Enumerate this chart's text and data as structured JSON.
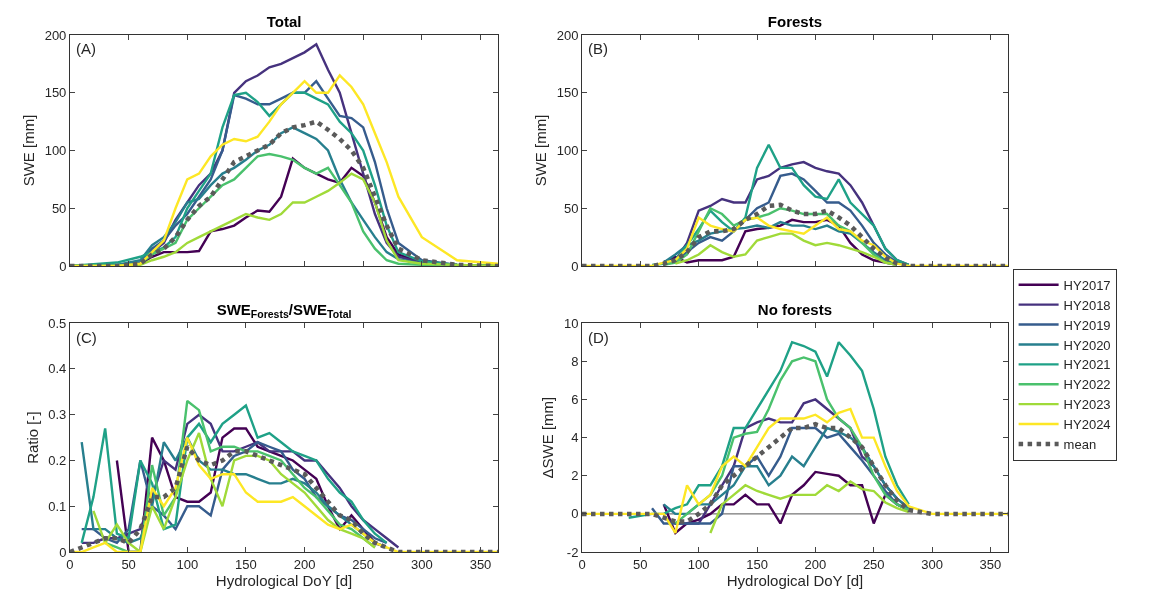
{
  "chart_data": [
    {
      "type": "line",
      "title": "Total",
      "ylabel": "SWE [mm]",
      "annotations": [
        "(A)"
      ],
      "tick_labels": "y",
      "line_style": "solid",
      "xlim": [
        0,
        365
      ],
      "xticks": [
        0,
        50,
        100,
        150,
        200,
        250,
        300,
        350
      ],
      "ylim": [
        0,
        200
      ],
      "yticks": [
        0,
        50,
        100,
        150,
        200
      ],
      "x": [
        0,
        40,
        60,
        70,
        80,
        90,
        100,
        110,
        120,
        130,
        140,
        150,
        160,
        170,
        180,
        190,
        200,
        210,
        220,
        230,
        240,
        250,
        260,
        270,
        280,
        300,
        330,
        365
      ],
      "series": [
        {
          "color": "#440154",
          "values": [
            0,
            0,
            2,
            8,
            12,
            12,
            12,
            13,
            30,
            32,
            35,
            42,
            48,
            47,
            60,
            93,
            85,
            80,
            75,
            72,
            85,
            78,
            55,
            25,
            10,
            3,
            1,
            0
          ]
        },
        {
          "color": "#46327e",
          "values": [
            0,
            0,
            3,
            12,
            20,
            40,
            55,
            70,
            80,
            100,
            150,
            160,
            165,
            172,
            175,
            180,
            185,
            192,
            170,
            150,
            115,
            80,
            45,
            20,
            8,
            3,
            1,
            0
          ]
        },
        {
          "color": "#365c8d",
          "values": [
            0,
            0,
            3,
            15,
            22,
            35,
            45,
            60,
            75,
            100,
            148,
            145,
            140,
            140,
            145,
            150,
            150,
            160,
            145,
            130,
            128,
            120,
            90,
            50,
            20,
            5,
            1,
            0
          ]
        },
        {
          "color": "#277f8e",
          "values": [
            0,
            1,
            5,
            18,
            25,
            38,
            55,
            58,
            70,
            80,
            85,
            92,
            100,
            105,
            115,
            120,
            115,
            110,
            100,
            75,
            55,
            40,
            25,
            12,
            6,
            2,
            1,
            0
          ]
        },
        {
          "color": "#1fa187",
          "values": [
            0,
            3,
            8,
            12,
            16,
            25,
            50,
            65,
            80,
            120,
            148,
            150,
            142,
            130,
            140,
            150,
            150,
            145,
            140,
            125,
            115,
            100,
            70,
            35,
            12,
            4,
            1,
            0
          ]
        },
        {
          "color": "#4ac16d",
          "values": [
            0,
            0,
            2,
            10,
            15,
            20,
            40,
            50,
            60,
            70,
            75,
            85,
            95,
            97,
            95,
            92,
            85,
            80,
            85,
            70,
            55,
            30,
            15,
            5,
            2,
            1,
            0,
            0
          ]
        },
        {
          "color": "#a0da39",
          "values": [
            0,
            0,
            1,
            5,
            8,
            12,
            20,
            25,
            30,
            35,
            40,
            45,
            42,
            40,
            45,
            55,
            55,
            60,
            65,
            72,
            80,
            75,
            55,
            22,
            5,
            2,
            1,
            0
          ]
        },
        {
          "color": "#fde725",
          "values": [
            0,
            0,
            2,
            12,
            22,
            50,
            75,
            80,
            95,
            105,
            110,
            108,
            112,
            125,
            140,
            150,
            160,
            150,
            150,
            165,
            155,
            140,
            115,
            90,
            60,
            25,
            5,
            2
          ]
        },
        {
          "color": "#5a5a5a",
          "line_style": "dotted",
          "values": [
            0,
            0,
            2,
            10,
            15,
            25,
            40,
            52,
            60,
            75,
            90,
            95,
            100,
            105,
            115,
            120,
            122,
            125,
            118,
            110,
            100,
            85,
            60,
            35,
            15,
            5,
            1,
            0
          ]
        }
      ]
    },
    {
      "type": "line",
      "title": "Forests",
      "ylabel": "SWE [mm]",
      "annotations": [
        "(B)"
      ],
      "tick_labels": "y",
      "legend": "right",
      "line_style": "solid",
      "xlim": [
        0,
        365
      ],
      "xticks": [
        0,
        50,
        100,
        150,
        200,
        250,
        300,
        350
      ],
      "ylim": [
        0,
        200
      ],
      "yticks": [
        0,
        50,
        100,
        150,
        200
      ],
      "x": [
        0,
        40,
        60,
        70,
        80,
        90,
        100,
        110,
        120,
        130,
        140,
        150,
        160,
        170,
        180,
        190,
        200,
        210,
        220,
        230,
        240,
        250,
        260,
        270,
        280,
        300,
        330,
        365
      ],
      "series": [
        {
          "name": "HY2017",
          "color": "#440154",
          "values": [
            null,
            null,
            null,
            3,
            8,
            3,
            5,
            5,
            5,
            8,
            30,
            32,
            33,
            35,
            40,
            38,
            38,
            40,
            35,
            20,
            10,
            5,
            3,
            1,
            null,
            null,
            null,
            null
          ]
        },
        {
          "name": "HY2018",
          "color": "#46327e",
          "values": [
            null,
            null,
            null,
            3,
            5,
            20,
            48,
            52,
            58,
            55,
            55,
            75,
            78,
            85,
            88,
            90,
            85,
            82,
            80,
            70,
            55,
            35,
            15,
            5,
            1,
            null,
            null,
            null
          ]
        },
        {
          "name": "HY2019",
          "color": "#365c8d",
          "values": [
            null,
            null,
            null,
            4,
            5,
            12,
            20,
            25,
            22,
            30,
            40,
            50,
            55,
            78,
            80,
            75,
            65,
            55,
            55,
            48,
            35,
            20,
            10,
            3,
            1,
            null,
            null,
            null
          ]
        },
        {
          "name": "HY2020",
          "color": "#277f8e",
          "values": [
            null,
            null,
            null,
            3,
            10,
            18,
            22,
            28,
            30,
            32,
            33,
            35,
            33,
            38,
            35,
            35,
            32,
            35,
            30,
            28,
            20,
            12,
            5,
            2,
            null,
            null,
            null,
            null
          ]
        },
        {
          "name": "HY2021",
          "color": "#1fa187",
          "values": [
            null,
            null,
            1,
            2,
            5,
            18,
            32,
            48,
            38,
            30,
            42,
            85,
            105,
            85,
            85,
            70,
            60,
            58,
            75,
            55,
            45,
            35,
            15,
            5,
            1,
            null,
            null,
            null
          ]
        },
        {
          "name": "HY2022",
          "color": "#4ac16d",
          "values": [
            null,
            null,
            null,
            1,
            3,
            10,
            30,
            50,
            45,
            35,
            40,
            42,
            45,
            50,
            48,
            45,
            45,
            45,
            35,
            30,
            20,
            10,
            3,
            1,
            null,
            null,
            null,
            null
          ]
        },
        {
          "name": "HY2023",
          "color": "#a0da39",
          "values": [
            null,
            null,
            null,
            null,
            2,
            5,
            10,
            18,
            12,
            8,
            10,
            22,
            25,
            28,
            28,
            22,
            18,
            20,
            18,
            15,
            12,
            8,
            3,
            1,
            null,
            null,
            null,
            null
          ]
        },
        {
          "name": "HY2024",
          "color": "#fde725",
          "values": [
            0,
            0,
            0,
            3,
            5,
            15,
            42,
            35,
            32,
            30,
            40,
            42,
            35,
            32,
            30,
            28,
            35,
            42,
            32,
            30,
            22,
            18,
            8,
            2,
            0,
            0,
            0,
            0
          ]
        },
        {
          "name": "mean",
          "color": "#5a5a5a",
          "line_style": "dotted",
          "values": [
            0,
            0,
            0,
            2,
            5,
            12,
            25,
            30,
            30,
            32,
            40,
            45,
            52,
            53,
            48,
            45,
            45,
            48,
            42,
            35,
            25,
            15,
            7,
            2,
            0,
            0,
            0,
            0
          ]
        }
      ]
    },
    {
      "type": "line",
      "title": "SWE$_{Forests}$/SWE$_{Total}$",
      "xlabel": "Hydrological DoY [d]",
      "ylabel": "Ratio [-]",
      "annotations": [
        "(C)"
      ],
      "line_style": "solid",
      "xlim": [
        0,
        365
      ],
      "xticks": [
        0,
        50,
        100,
        150,
        200,
        250,
        300,
        350
      ],
      "ylim": [
        0,
        0.5
      ],
      "yticks": [
        0,
        0.1,
        0.2,
        0.3,
        0.4,
        0.5
      ],
      "x": [
        0,
        10,
        20,
        30,
        40,
        50,
        60,
        70,
        80,
        90,
        100,
        110,
        120,
        130,
        140,
        150,
        160,
        170,
        180,
        190,
        200,
        210,
        220,
        230,
        240,
        250,
        260,
        270,
        280,
        300,
        330,
        365
      ],
      "series": [
        {
          "color": "#440154",
          "values": [
            null,
            null,
            null,
            null,
            0.2,
            0,
            0,
            0.25,
            0.2,
            0.12,
            0.11,
            0.11,
            0.13,
            0.25,
            0.27,
            0.27,
            0.23,
            0.22,
            0.21,
            0.2,
            0.18,
            0.16,
            0.1,
            0.05,
            0.08,
            0.05,
            0.02,
            0.01,
            null,
            null,
            null,
            null
          ]
        },
        {
          "color": "#46327e",
          "values": [
            null,
            0.02,
            0.02,
            0.03,
            0.03,
            0.04,
            0.05,
            0.12,
            0.2,
            0.18,
            0.28,
            0.3,
            0.28,
            0.22,
            0.22,
            0.23,
            0.24,
            0.22,
            0.22,
            0.22,
            0.2,
            0.2,
            0.17,
            0.14,
            0.1,
            0.07,
            0.05,
            0.03,
            0.01,
            null,
            null,
            null
          ]
        },
        {
          "color": "#365c8d",
          "values": [
            null,
            0.05,
            0.05,
            0.03,
            0.02,
            0.05,
            0.2,
            0.1,
            0.08,
            0.05,
            0.1,
            0.1,
            0.08,
            0.18,
            0.21,
            0.22,
            0.24,
            0.23,
            0.22,
            0.18,
            0.16,
            0.12,
            0.1,
            0.08,
            0.07,
            0.05,
            0.03,
            0.02,
            null,
            null,
            null,
            null
          ]
        },
        {
          "color": "#277f8e",
          "values": [
            null,
            0.24,
            0.05,
            0.05,
            0.03,
            0.02,
            0.03,
            0.1,
            0.24,
            0.2,
            0.25,
            0.2,
            0.18,
            0.18,
            0.17,
            0.17,
            0.16,
            0.15,
            0.15,
            0.16,
            0.15,
            0.13,
            0.1,
            0.08,
            0.06,
            0.04,
            0.02,
            0.01,
            null,
            null,
            null,
            null
          ]
        },
        {
          "color": "#1fa187",
          "values": [
            null,
            0.02,
            0.12,
            0.27,
            0.04,
            0.03,
            0.2,
            0.15,
            0.05,
            0.06,
            0.25,
            0.28,
            0.24,
            0.28,
            0.3,
            0.32,
            0.25,
            0.26,
            0.24,
            0.22,
            0.21,
            0.2,
            0.16,
            0.13,
            0.11,
            0.07,
            0.04,
            0.02,
            null,
            null,
            null,
            null
          ]
        },
        {
          "color": "#4ac16d",
          "values": [
            null,
            null,
            null,
            0.02,
            0.01,
            0,
            0,
            0.19,
            0.08,
            0.12,
            0.33,
            0.31,
            0.22,
            0.23,
            0.23,
            0.22,
            0.22,
            0.21,
            0.2,
            0.17,
            0.14,
            0.12,
            0.09,
            0.06,
            0.05,
            0.03,
            0.01,
            null,
            null,
            null,
            null,
            null
          ]
        },
        {
          "color": "#a0da39",
          "values": [
            null,
            null,
            0.09,
            0.02,
            0.06,
            0.02,
            0,
            0.1,
            0.05,
            0.12,
            0.2,
            0.26,
            0.16,
            0.1,
            0.2,
            0.21,
            0.21,
            0.2,
            0.17,
            0.15,
            0.13,
            0.1,
            0.07,
            0.05,
            0.04,
            0.03,
            0.01,
            null,
            null,
            null,
            null,
            null
          ]
        },
        {
          "color": "#fde725",
          "values": [
            0,
            0,
            0.01,
            0.02,
            0,
            0,
            0,
            0.14,
            0.1,
            0.14,
            0.25,
            0.19,
            0.16,
            0.17,
            0.17,
            0.13,
            0.11,
            0.11,
            0.11,
            0.12,
            0.1,
            0.08,
            0.06,
            0.05,
            0.06,
            0.04,
            0.02,
            0.01,
            0,
            0,
            0,
            0
          ]
        },
        {
          "color": "#5a5a5a",
          "line_style": "dotted",
          "values": [
            0,
            0.01,
            0.02,
            0.03,
            0.03,
            0.02,
            0.05,
            0.12,
            0.12,
            0.14,
            0.23,
            0.2,
            0.19,
            0.2,
            0.22,
            0.22,
            0.21,
            0.2,
            0.19,
            0.18,
            0.17,
            0.14,
            0.11,
            0.08,
            0.07,
            0.04,
            0.02,
            0.01,
            0,
            0,
            0,
            0
          ]
        }
      ]
    },
    {
      "type": "line",
      "title": "No forests",
      "xlabel": "Hydrological DoY [d]",
      "ylabel": "ΔSWE [mm]",
      "annotations": [
        "(D)"
      ],
      "line_style": "solid",
      "xlim": [
        0,
        365
      ],
      "xticks": [
        0,
        50,
        100,
        150,
        200,
        250,
        300,
        350
      ],
      "ylim": [
        -2,
        10
      ],
      "yticks": [
        -2,
        0,
        2,
        4,
        6,
        8,
        10
      ],
      "ref_lines": [
        {
          "axis": "y",
          "value": 0,
          "color": "#555555"
        }
      ],
      "x": [
        0,
        40,
        60,
        70,
        80,
        90,
        100,
        110,
        120,
        130,
        140,
        150,
        160,
        170,
        180,
        190,
        200,
        210,
        220,
        230,
        240,
        250,
        260,
        270,
        280,
        300,
        330,
        365
      ],
      "series": [
        {
          "color": "#440154",
          "values": [
            null,
            null,
            null,
            0.5,
            -1,
            -0.5,
            -0.3,
            0,
            0.5,
            0.5,
            1,
            0.5,
            0.5,
            -0.5,
            1,
            1.5,
            2.2,
            2.1,
            2,
            1.5,
            1.5,
            -0.5,
            1,
            0.5,
            0.2,
            null,
            null,
            null
          ]
        },
        {
          "color": "#46327e",
          "values": [
            null,
            null,
            null,
            -0.2,
            -0.5,
            -0.5,
            -0.5,
            0.5,
            1.5,
            2.5,
            4.5,
            4.8,
            5,
            4.8,
            4.8,
            5.8,
            6,
            5.5,
            5,
            4.5,
            3,
            2.5,
            1.5,
            0.8,
            0.3,
            null,
            null,
            null
          ]
        },
        {
          "color": "#365c8d",
          "values": [
            null,
            null,
            0.3,
            -0.5,
            -0.5,
            -0.5,
            -0.5,
            -0.5,
            0,
            2.5,
            2.5,
            3,
            2,
            3,
            4.5,
            4.5,
            4.5,
            4,
            4.2,
            3.5,
            2.8,
            2,
            1.2,
            0.5,
            0.2,
            null,
            null,
            null
          ]
        },
        {
          "color": "#277f8e",
          "values": [
            null,
            null,
            null,
            0.5,
            0,
            0,
            0.5,
            0.5,
            1,
            1.5,
            2.5,
            2.5,
            1.5,
            2,
            3,
            2.5,
            3.5,
            4.5,
            4.3,
            4,
            3.5,
            2.5,
            1.5,
            0.8,
            0.3,
            null,
            null,
            null
          ]
        },
        {
          "color": "#1fa187",
          "values": [
            null,
            -0.2,
            0,
            0,
            0.3,
            0.5,
            1.5,
            1.5,
            2.5,
            4.5,
            4.5,
            5.5,
            6.5,
            7.5,
            9,
            8.8,
            8.5,
            7.2,
            9,
            8.3,
            7.5,
            5.5,
            3,
            1.5,
            0.5,
            null,
            null,
            null
          ]
        },
        {
          "color": "#4ac16d",
          "values": [
            null,
            null,
            null,
            null,
            -0.5,
            0,
            0.5,
            1,
            2,
            4,
            4.2,
            4.3,
            5.5,
            7,
            8,
            8.2,
            8,
            6,
            5,
            4.5,
            3.5,
            2,
            1,
            0.5,
            0.2,
            null,
            null,
            null
          ]
        },
        {
          "color": "#a0da39",
          "values": [
            null,
            null,
            null,
            null,
            null,
            null,
            null,
            -1,
            0.5,
            1,
            1.5,
            1.2,
            1,
            0.8,
            1,
            1,
            1,
            1.5,
            1.2,
            1.7,
            1.3,
            1.2,
            0.6,
            0.3,
            0.1,
            null,
            null,
            null
          ]
        },
        {
          "color": "#fde725",
          "values": [
            0,
            0,
            0,
            0,
            -1,
            1.5,
            0.5,
            1,
            2.5,
            3,
            2.5,
            3.5,
            4.5,
            5,
            5,
            5,
            5.2,
            4.8,
            5.3,
            5.5,
            4,
            4,
            2.5,
            1.2,
            0.4,
            0,
            0,
            0
          ]
        },
        {
          "color": "#5a5a5a",
          "line_style": "dotted",
          "values": [
            0,
            0,
            0,
            -0.2,
            -0.4,
            -0.4,
            0,
            0.5,
            1.5,
            2,
            2.5,
            3,
            3.5,
            4,
            4.5,
            4.5,
            4.7,
            4.5,
            4.5,
            4,
            3.5,
            2.5,
            1.5,
            0.7,
            0.2,
            0,
            0,
            0
          ]
        }
      ]
    }
  ]
}
